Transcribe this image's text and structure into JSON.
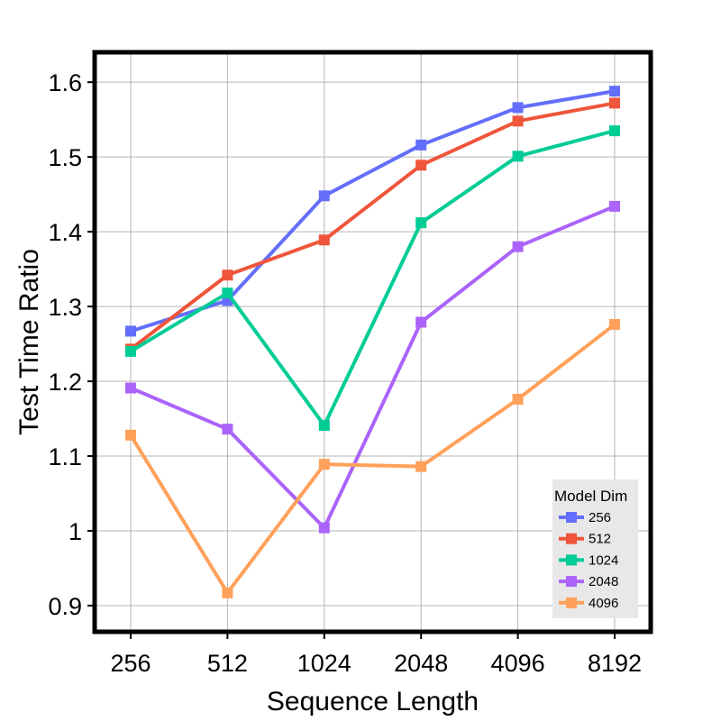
{
  "chart_data": {
    "type": "line",
    "xlabel": "Sequence Length",
    "ylabel": "Test Time Ratio",
    "categories": [
      "256",
      "512",
      "1024",
      "2048",
      "4096",
      "8192"
    ],
    "y_ticks": [
      0.9,
      1.0,
      1.1,
      1.2,
      1.3,
      1.4,
      1.5,
      1.6
    ],
    "y_tick_labels": [
      "0.9",
      "1",
      "1.1",
      "1.2",
      "1.3",
      "1.4",
      "1.5",
      "1.6"
    ],
    "ylim": [
      0.865,
      1.64
    ],
    "grid": true,
    "legend": {
      "title": "Model Dim",
      "placement": "bottom-right"
    },
    "series": [
      {
        "name": "256",
        "color": "#636efa",
        "values": [
          1.267,
          1.308,
          1.448,
          1.516,
          1.566,
          1.588
        ]
      },
      {
        "name": "512",
        "color": "#ef553b",
        "values": [
          1.243,
          1.342,
          1.389,
          1.489,
          1.548,
          1.572
        ]
      },
      {
        "name": "1024",
        "color": "#00cc96",
        "values": [
          1.24,
          1.318,
          1.141,
          1.412,
          1.501,
          1.535
        ]
      },
      {
        "name": "2048",
        "color": "#ab63fa",
        "values": [
          1.191,
          1.136,
          1.004,
          1.279,
          1.38,
          1.434
        ]
      },
      {
        "name": "4096",
        "color": "#ffa15a",
        "values": [
          1.128,
          0.917,
          1.089,
          1.086,
          1.176,
          1.276
        ]
      }
    ]
  }
}
